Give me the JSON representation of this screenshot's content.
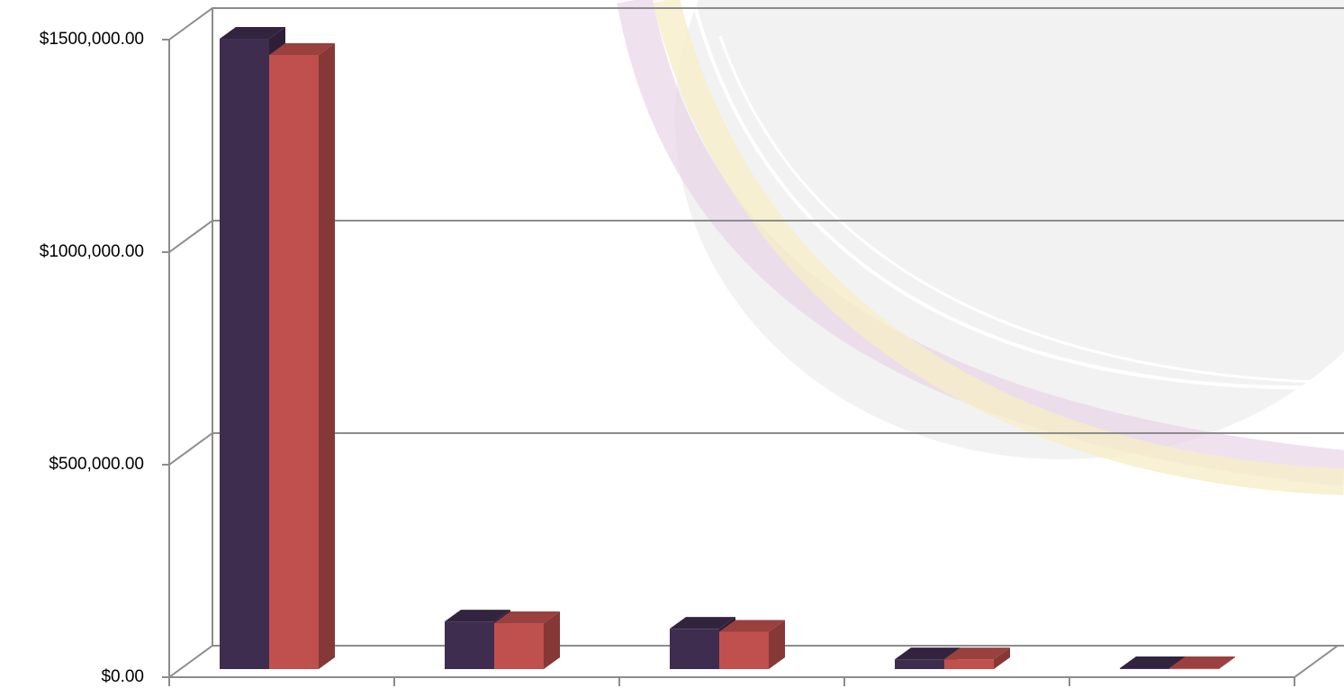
{
  "chart_data": {
    "type": "bar3d",
    "categories": [
      null,
      null,
      null,
      null,
      null
    ],
    "series": [
      {
        "color": "#3f2d4f",
        "values": [
          1483000,
          112000,
          95000,
          23000,
          2000
        ]
      },
      {
        "color": "#c0504d",
        "values": [
          1445000,
          108000,
          88000,
          23000,
          2000
        ]
      }
    ],
    "ylim": [
      0,
      1500000
    ],
    "yticks": [
      {
        "value": 0,
        "label": "$0.00"
      },
      {
        "value": 500000,
        "label": "$500,000.00"
      },
      {
        "value": 1000000,
        "label": "$1000,000.00"
      },
      {
        "value": 1500000,
        "label": "$1500,000.00"
      }
    ],
    "grid": true
  }
}
